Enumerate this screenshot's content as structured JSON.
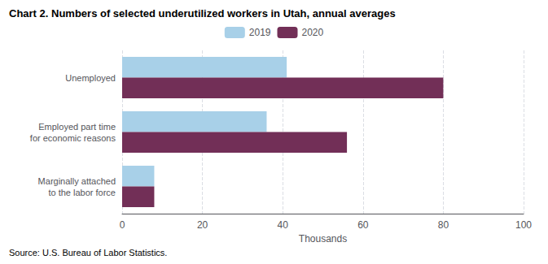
{
  "chart_data": {
    "type": "bar",
    "orientation": "horizontal",
    "title": "Chart 2. Numbers of selected underutilized workers in Utah, annual averages",
    "source": "Source: U.S. Bureau of Labor Statistics.",
    "categories": [
      "Marginally attached\nto the labor force",
      "Employed part time\nfor economic reasons",
      "Unemployed"
    ],
    "series": [
      {
        "name": "2019",
        "color": "#a8d0e8",
        "values": [
          8,
          36,
          41
        ]
      },
      {
        "name": "2020",
        "color": "#722f57",
        "values": [
          8,
          56,
          80
        ]
      }
    ],
    "xlabel": "Thousands",
    "xlim": [
      0,
      100
    ],
    "xticks": [
      0,
      20,
      40,
      60,
      80,
      100
    ],
    "grid": true,
    "legend": "top"
  }
}
